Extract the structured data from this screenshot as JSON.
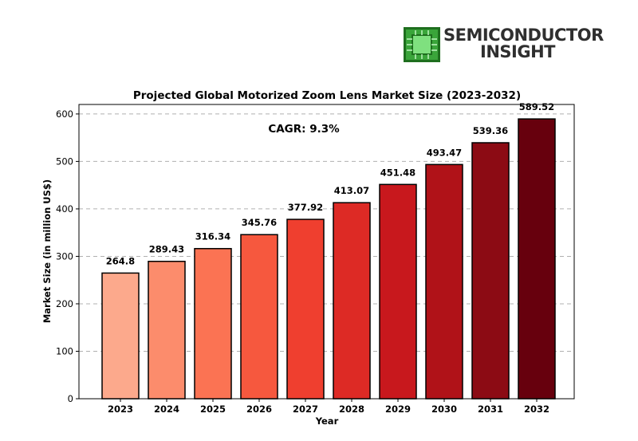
{
  "logo": {
    "line1": "SEMICONDUCTOR",
    "line2": "INSIGHT",
    "colors": {
      "chip": "#3aa53a",
      "text": "#2f2f2f"
    }
  },
  "chart_data": {
    "type": "bar",
    "title": "Projected Global Motorized Zoom Lens Market Size (2023-2032)",
    "xlabel": "Year",
    "ylabel": "Market Size (in million US$)",
    "categories": [
      "2023",
      "2024",
      "2025",
      "2026",
      "2027",
      "2028",
      "2029",
      "2030",
      "2031",
      "2032"
    ],
    "values": [
      264.8,
      289.43,
      316.34,
      345.76,
      377.92,
      413.07,
      451.48,
      493.47,
      539.36,
      589.52
    ],
    "data_labels": [
      "264.8",
      "289.43",
      "316.34",
      "345.76",
      "377.92",
      "413.07",
      "451.48",
      "493.47",
      "539.36",
      "589.52"
    ],
    "ylim": [
      0,
      620
    ],
    "yticks": [
      0,
      100,
      200,
      300,
      400,
      500,
      600
    ],
    "grid": "horizontal-dashed",
    "annotation": "CAGR: 9.3%",
    "colors": [
      "#fca98c",
      "#fc8c6c",
      "#fb7353",
      "#f6583e",
      "#ef3f2f",
      "#dd2a25",
      "#c8181d",
      "#b01218",
      "#8c0b14",
      "#67000d"
    ]
  }
}
